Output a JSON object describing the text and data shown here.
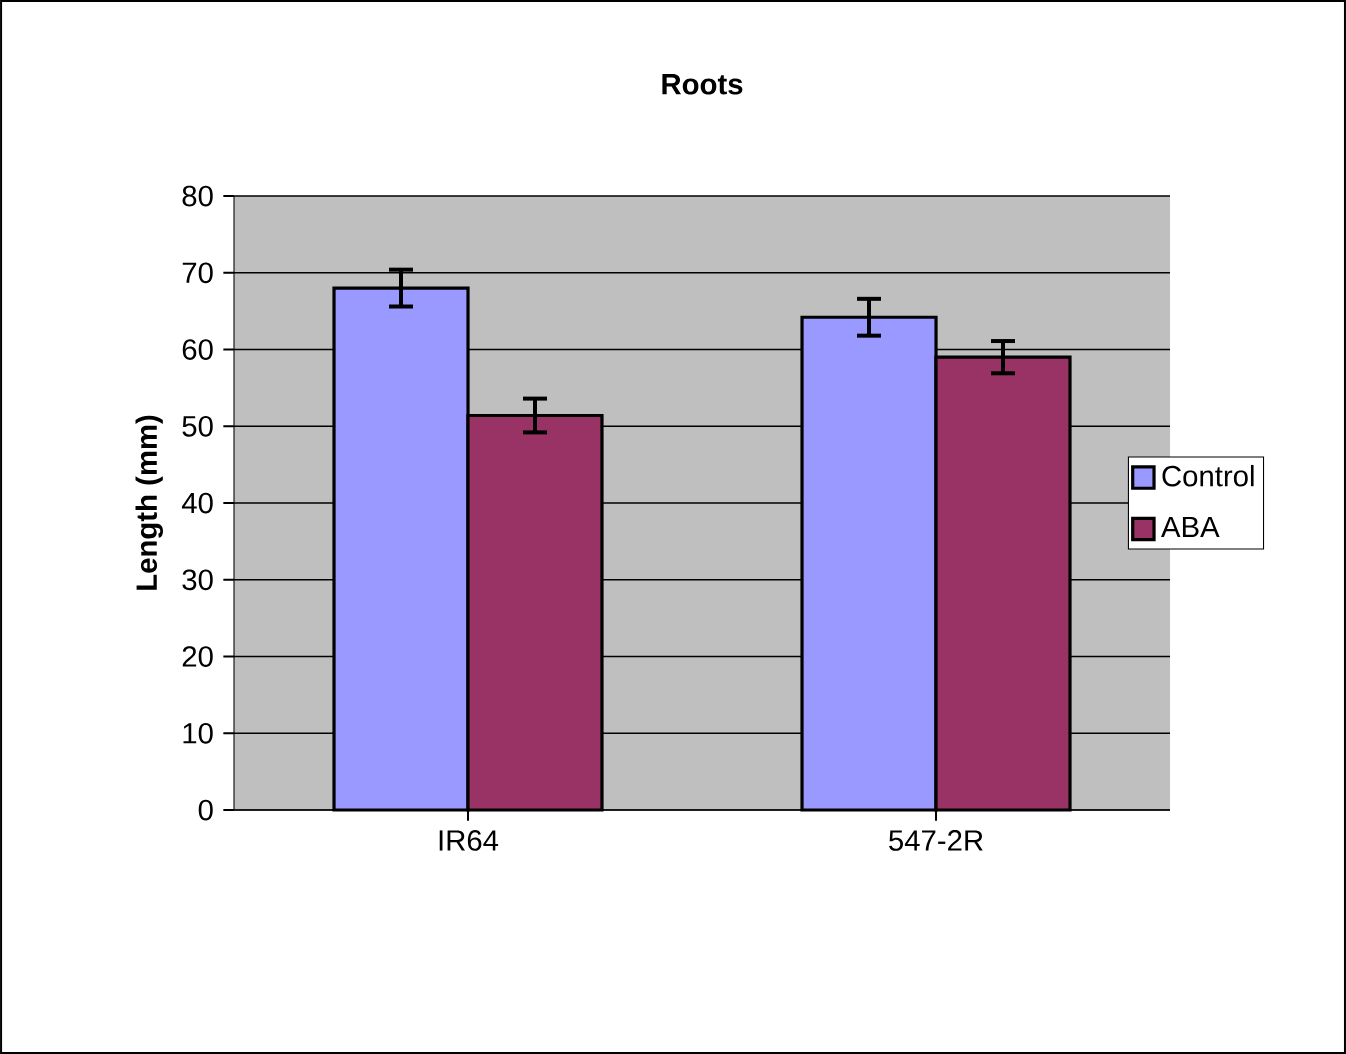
{
  "chart_data": {
    "type": "bar",
    "title": "Roots",
    "ylabel": "Length (mm)",
    "categories": [
      "IR64",
      "547-2R"
    ],
    "series": [
      {
        "name": "Control",
        "color": "#9999ff",
        "values": [
          68,
          64.2
        ],
        "errors": [
          2.4,
          2.4
        ]
      },
      {
        "name": "ABA",
        "color": "#993366",
        "values": [
          51.4,
          59
        ],
        "errors": [
          2.2,
          2.1
        ]
      }
    ],
    "ylim": [
      0,
      80
    ],
    "yticks": [
      0,
      10,
      20,
      30,
      40,
      50,
      60,
      70,
      80
    ],
    "grid": "y",
    "legend": "right"
  }
}
